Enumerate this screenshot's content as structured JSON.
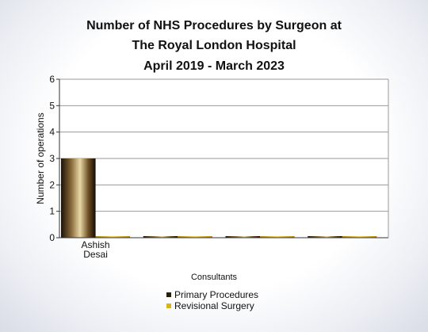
{
  "chart_data": {
    "type": "bar",
    "title": [
      "Number of NHS Procedures by Surgeon at",
      "The Royal London Hospital",
      "April 2019 - March 2023"
    ],
    "xlabel": "Consultants",
    "ylabel": "Number of operations",
    "ylim": [
      0,
      6
    ],
    "yticks": [
      "0",
      "1",
      "2",
      "3",
      "4",
      "5",
      "6"
    ],
    "categories": [
      [
        "Ashish",
        "Desai"
      ],
      [],
      [],
      []
    ],
    "series": [
      {
        "name": "Primary Procedures",
        "values": [
          3,
          0,
          0,
          0
        ],
        "color": "#2b1d0c"
      },
      {
        "name": "Revisional Surgery",
        "values": [
          0,
          0,
          0,
          0
        ],
        "color": "#d9b21c"
      }
    ],
    "grid": true,
    "legend": "bottom"
  }
}
